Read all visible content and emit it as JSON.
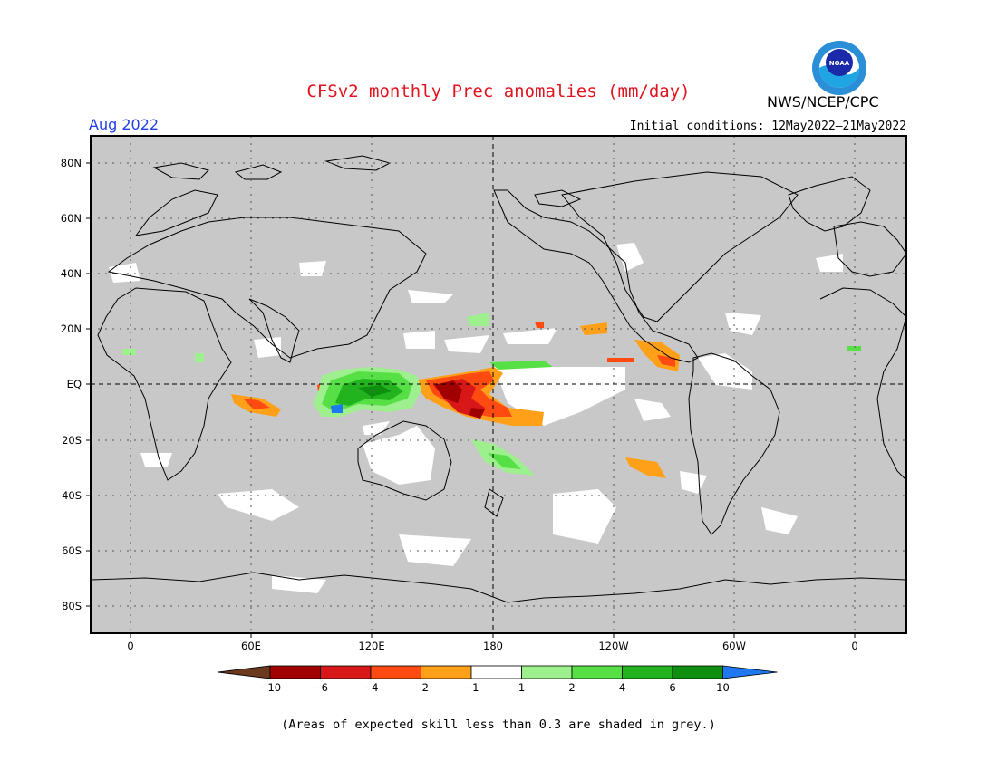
{
  "title": "CFSv2 monthly Prec anomalies (mm/day)",
  "agency": "NWS/NCEP/CPC",
  "logo_text": "NOAA",
  "target_month": "Aug 2022",
  "initial_conditions": "Initial conditions: 12May2022–21May2022",
  "y_axis_labels": [
    "80N",
    "60N",
    "40N",
    "20N",
    "EQ",
    "20S",
    "40S",
    "60S",
    "80S"
  ],
  "x_axis_labels": [
    "0",
    "60E",
    "120E",
    "180",
    "120W",
    "60W",
    "0"
  ],
  "colorbar": {
    "labels": [
      "−10",
      "−6",
      "−4",
      "−2",
      "−1",
      "1",
      "2",
      "4",
      "6",
      "10"
    ],
    "colors": [
      "#6b3a1e",
      "#a00000",
      "#d81818",
      "#ff4a12",
      "#ffa018",
      "#ffffff",
      "#9ef08e",
      "#56e046",
      "#22b31e",
      "#0e8f10",
      "#1e78f0"
    ]
  },
  "colors": {
    "land_grey": "#c8c8c8",
    "near_zero": "#ffffff",
    "title_red": "#e0141e",
    "month_blue": "#1f3ee8"
  },
  "footnote": "(Areas of expected skill less than 0.3 are shaded in grey.)"
}
